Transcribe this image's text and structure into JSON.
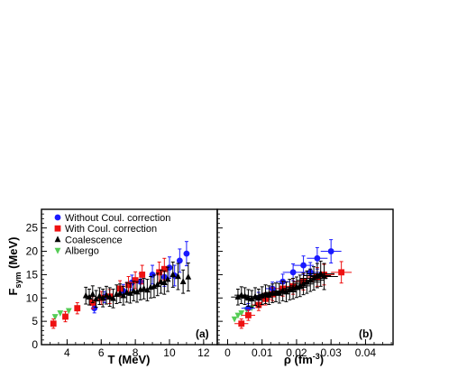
{
  "chart_data": [
    {
      "type": "scatter",
      "panel_label": "(a)",
      "xlabel": "T (MeV)",
      "ylabel": "F_sym (MeV)",
      "ylabel_main": "F",
      "ylabel_sub": "sym",
      "ylabel_unit": " (MeV)",
      "xlim": [
        2.5,
        12.8
      ],
      "ylim": [
        0,
        29
      ],
      "xticks": [
        4,
        6,
        8,
        10,
        12
      ],
      "yticks": [
        0,
        5,
        10,
        15,
        20,
        25
      ],
      "grid": false,
      "legend_position": "top-left",
      "series": [
        {
          "name": "Without Coul. correction",
          "marker": "circle",
          "color": "#1a1aff",
          "points": [
            {
              "x": 5.6,
              "y": 7.8,
              "err": 1.0
            },
            {
              "x": 6.2,
              "y": 10.2,
              "err": 1.2
            },
            {
              "x": 7.3,
              "y": 11.5,
              "err": 1.4
            },
            {
              "x": 7.8,
              "y": 13.3,
              "err": 1.6
            },
            {
              "x": 8.3,
              "y": 13.5,
              "err": 1.7
            },
            {
              "x": 9.0,
              "y": 15.0,
              "err": 2.0
            },
            {
              "x": 9.7,
              "y": 14.5,
              "err": 2.0
            },
            {
              "x": 10.0,
              "y": 16.5,
              "err": 2.3
            },
            {
              "x": 10.3,
              "y": 14.8,
              "err": 2.2
            },
            {
              "x": 10.6,
              "y": 18.0,
              "err": 2.5
            },
            {
              "x": 11.0,
              "y": 19.5,
              "err": 2.6
            }
          ]
        },
        {
          "name": "With Coul. correction",
          "marker": "square",
          "color": "#ee1111",
          "points": [
            {
              "x": 3.2,
              "y": 4.5,
              "err": 1.0
            },
            {
              "x": 3.9,
              "y": 6.0,
              "err": 1.1
            },
            {
              "x": 4.6,
              "y": 7.8,
              "err": 1.2
            },
            {
              "x": 5.5,
              "y": 9.0,
              "err": 1.3
            },
            {
              "x": 6.0,
              "y": 10.0,
              "err": 1.4
            },
            {
              "x": 6.5,
              "y": 10.3,
              "err": 1.5
            },
            {
              "x": 7.1,
              "y": 12.0,
              "err": 1.7
            },
            {
              "x": 7.6,
              "y": 12.8,
              "err": 1.8
            },
            {
              "x": 8.0,
              "y": 13.8,
              "err": 1.8
            },
            {
              "x": 8.4,
              "y": 15.0,
              "err": 2.0
            },
            {
              "x": 9.4,
              "y": 15.5,
              "err": 2.2
            },
            {
              "x": 9.7,
              "y": 16.2,
              "err": 2.3
            }
          ]
        },
        {
          "name": "Coalescence",
          "marker": "triangle-up",
          "color": "#000000",
          "points": [
            {
              "x": 5.1,
              "y": 10.5,
              "err": 1.8
            },
            {
              "x": 5.3,
              "y": 10.2,
              "err": 1.7
            },
            {
              "x": 5.5,
              "y": 10.8,
              "err": 1.8
            },
            {
              "x": 5.7,
              "y": 9.8,
              "err": 1.8
            },
            {
              "x": 5.9,
              "y": 10.4,
              "err": 1.8
            },
            {
              "x": 6.1,
              "y": 10.0,
              "err": 1.9
            },
            {
              "x": 6.3,
              "y": 10.6,
              "err": 1.9
            },
            {
              "x": 6.5,
              "y": 10.2,
              "err": 2.0
            },
            {
              "x": 6.7,
              "y": 9.9,
              "err": 2.0
            },
            {
              "x": 6.9,
              "y": 10.8,
              "err": 2.0
            },
            {
              "x": 7.1,
              "y": 11.0,
              "err": 2.0
            },
            {
              "x": 7.3,
              "y": 10.5,
              "err": 2.0
            },
            {
              "x": 7.5,
              "y": 11.2,
              "err": 2.1
            },
            {
              "x": 7.7,
              "y": 11.0,
              "err": 2.1
            },
            {
              "x": 7.9,
              "y": 11.5,
              "err": 2.1
            },
            {
              "x": 8.1,
              "y": 11.3,
              "err": 2.2
            },
            {
              "x": 8.3,
              "y": 11.8,
              "err": 2.2
            },
            {
              "x": 8.5,
              "y": 12.0,
              "err": 2.2
            },
            {
              "x": 8.7,
              "y": 11.7,
              "err": 2.3
            },
            {
              "x": 8.9,
              "y": 12.3,
              "err": 2.3
            },
            {
              "x": 9.1,
              "y": 12.5,
              "err": 2.4
            },
            {
              "x": 9.3,
              "y": 12.9,
              "err": 2.4
            },
            {
              "x": 9.5,
              "y": 13.5,
              "err": 2.5
            },
            {
              "x": 9.7,
              "y": 13.3,
              "err": 2.5
            },
            {
              "x": 9.9,
              "y": 14.0,
              "err": 2.6
            },
            {
              "x": 10.2,
              "y": 15.0,
              "err": 2.7
            },
            {
              "x": 10.5,
              "y": 14.6,
              "err": 2.8
            },
            {
              "x": 10.8,
              "y": 13.5,
              "err": 2.5
            },
            {
              "x": 11.1,
              "y": 14.5,
              "err": 3.0
            }
          ]
        },
        {
          "name": "Albergo",
          "marker": "triangle-down",
          "color": "#55cc55",
          "points": [
            {
              "x": 3.3,
              "y": 6.0,
              "err": 0
            },
            {
              "x": 3.6,
              "y": 6.8,
              "err": 0
            },
            {
              "x": 4.1,
              "y": 7.3,
              "err": 0
            },
            {
              "x": 4.6,
              "y": 7.9,
              "err": 0
            }
          ]
        }
      ]
    },
    {
      "type": "scatter",
      "panel_label": "(b)",
      "xlabel": "ρ (fm⁻³)",
      "xlabel_main": "ρ (fm",
      "xlabel_sup": "-3",
      "xlabel_close": ")",
      "xlim": [
        -0.003,
        0.048
      ],
      "ylim": [
        0,
        29
      ],
      "xticks": [
        0,
        0.01,
        0.02,
        0.03,
        0.04
      ],
      "xtick_labels": [
        "0",
        "0.01",
        "0.02",
        "0.03",
        "0.04"
      ],
      "grid": false,
      "series": [
        {
          "name": "Without Coul. correction",
          "marker": "circle",
          "color": "#1a1aff",
          "points": [
            {
              "x": 0.006,
              "y": 7.8,
              "err": 1.0,
              "xerr": 0.002
            },
            {
              "x": 0.009,
              "y": 10.0,
              "err": 1.2,
              "xerr": 0.002
            },
            {
              "x": 0.013,
              "y": 12.0,
              "err": 1.4,
              "xerr": 0.002
            },
            {
              "x": 0.016,
              "y": 13.5,
              "err": 1.6,
              "xerr": 0.002
            },
            {
              "x": 0.019,
              "y": 15.5,
              "err": 1.8,
              "xerr": 0.003
            },
            {
              "x": 0.022,
              "y": 17.0,
              "err": 2.0,
              "xerr": 0.003
            },
            {
              "x": 0.024,
              "y": 15.5,
              "err": 2.1,
              "xerr": 0.003
            },
            {
              "x": 0.026,
              "y": 18.5,
              "err": 2.3,
              "xerr": 0.003
            },
            {
              "x": 0.03,
              "y": 20.0,
              "err": 2.5,
              "xerr": 0.003
            }
          ]
        },
        {
          "name": "With Coul. correction",
          "marker": "square",
          "color": "#ee1111",
          "points": [
            {
              "x": 0.004,
              "y": 4.5,
              "err": 1.0,
              "xerr": 0.002
            },
            {
              "x": 0.006,
              "y": 6.3,
              "err": 1.1,
              "xerr": 0.002
            },
            {
              "x": 0.009,
              "y": 8.5,
              "err": 1.2,
              "xerr": 0.002
            },
            {
              "x": 0.011,
              "y": 9.8,
              "err": 1.3,
              "xerr": 0.002
            },
            {
              "x": 0.013,
              "y": 10.8,
              "err": 1.4,
              "xerr": 0.002
            },
            {
              "x": 0.016,
              "y": 12.0,
              "err": 1.6,
              "xerr": 0.002
            },
            {
              "x": 0.019,
              "y": 12.5,
              "err": 1.7,
              "xerr": 0.003
            },
            {
              "x": 0.022,
              "y": 13.5,
              "err": 1.8,
              "xerr": 0.003
            },
            {
              "x": 0.026,
              "y": 14.5,
              "err": 2.0,
              "xerr": 0.003
            },
            {
              "x": 0.028,
              "y": 15.0,
              "err": 2.2,
              "xerr": 0.003
            },
            {
              "x": 0.033,
              "y": 15.5,
              "err": 2.3,
              "xerr": 0.003
            }
          ]
        },
        {
          "name": "Coalescence",
          "marker": "triangle-up",
          "color": "#000000",
          "points": [
            {
              "x": 0.003,
              "y": 10.2,
              "err": 1.7,
              "xerr": 0.002
            },
            {
              "x": 0.004,
              "y": 10.6,
              "err": 1.8,
              "xerr": 0.002
            },
            {
              "x": 0.005,
              "y": 10.4,
              "err": 1.8,
              "xerr": 0.002
            },
            {
              "x": 0.006,
              "y": 10.0,
              "err": 1.8,
              "xerr": 0.002
            },
            {
              "x": 0.007,
              "y": 9.8,
              "err": 1.8,
              "xerr": 0.002
            },
            {
              "x": 0.008,
              "y": 10.3,
              "err": 1.9,
              "xerr": 0.002
            },
            {
              "x": 0.009,
              "y": 10.0,
              "err": 1.9,
              "xerr": 0.002
            },
            {
              "x": 0.01,
              "y": 10.5,
              "err": 1.9,
              "xerr": 0.002
            },
            {
              "x": 0.011,
              "y": 10.8,
              "err": 2.0,
              "xerr": 0.002
            },
            {
              "x": 0.012,
              "y": 10.6,
              "err": 2.0,
              "xerr": 0.003
            },
            {
              "x": 0.013,
              "y": 11.0,
              "err": 2.0,
              "xerr": 0.003
            },
            {
              "x": 0.014,
              "y": 11.2,
              "err": 2.0,
              "xerr": 0.003
            },
            {
              "x": 0.015,
              "y": 11.0,
              "err": 2.1,
              "xerr": 0.003
            },
            {
              "x": 0.016,
              "y": 11.5,
              "err": 2.1,
              "xerr": 0.003
            },
            {
              "x": 0.017,
              "y": 11.3,
              "err": 2.1,
              "xerr": 0.003
            },
            {
              "x": 0.018,
              "y": 11.8,
              "err": 2.2,
              "xerr": 0.003
            },
            {
              "x": 0.019,
              "y": 12.0,
              "err": 2.2,
              "xerr": 0.003
            },
            {
              "x": 0.02,
              "y": 12.3,
              "err": 2.2,
              "xerr": 0.003
            },
            {
              "x": 0.021,
              "y": 12.6,
              "err": 2.3,
              "xerr": 0.003
            },
            {
              "x": 0.022,
              "y": 13.0,
              "err": 2.3,
              "xerr": 0.003
            },
            {
              "x": 0.023,
              "y": 13.4,
              "err": 2.4,
              "xerr": 0.004
            },
            {
              "x": 0.024,
              "y": 13.8,
              "err": 2.4,
              "xerr": 0.004
            },
            {
              "x": 0.025,
              "y": 14.2,
              "err": 2.5,
              "xerr": 0.004
            },
            {
              "x": 0.026,
              "y": 14.8,
              "err": 2.6,
              "xerr": 0.004
            },
            {
              "x": 0.027,
              "y": 15.2,
              "err": 2.7,
              "xerr": 0.004
            },
            {
              "x": 0.028,
              "y": 14.6,
              "err": 2.8,
              "xerr": 0.004
            }
          ]
        },
        {
          "name": "Albergo",
          "marker": "triangle-down",
          "color": "#55cc55",
          "points": [
            {
              "x": 0.002,
              "y": 5.5,
              "err": 0
            },
            {
              "x": 0.003,
              "y": 6.3,
              "err": 0
            },
            {
              "x": 0.004,
              "y": 6.8,
              "err": 0
            },
            {
              "x": 0.0055,
              "y": 7.5,
              "err": 0
            },
            {
              "x": 0.007,
              "y": 7.9,
              "err": 0
            }
          ]
        }
      ]
    }
  ]
}
